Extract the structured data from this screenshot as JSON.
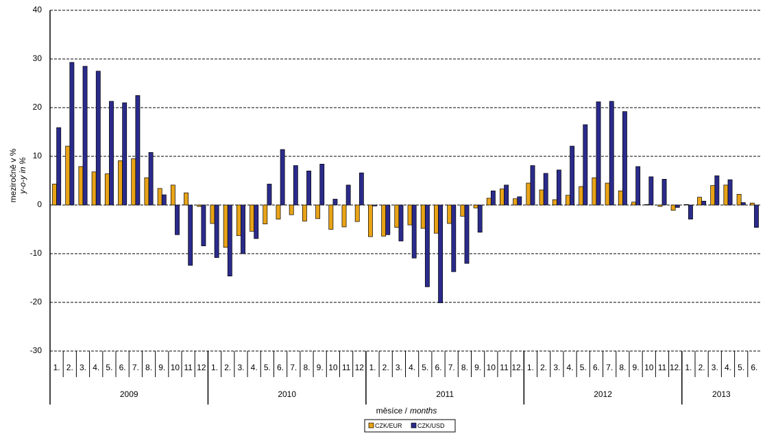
{
  "chart_data": {
    "type": "bar",
    "y_label": "meziročně v %",
    "y_label_en": "y-o-y in %",
    "x_label": "měsíce /",
    "x_label_en": "months",
    "ylim": [
      -30,
      40
    ],
    "yticks": [
      -30,
      -20,
      -10,
      0,
      10,
      20,
      30,
      40
    ],
    "grid": true,
    "categories": [
      "1.",
      "2.",
      "3.",
      "4.",
      "5.",
      "6.",
      "7.",
      "8.",
      "9.",
      "10",
      "11",
      "12",
      "1.",
      "2.",
      "3.",
      "4.",
      "5.",
      "6.",
      "7.",
      "8.",
      "9.",
      "10",
      "11",
      "12",
      "1.",
      "2.",
      "3.",
      "4.",
      "5.",
      "6.",
      "7.",
      "8.",
      "9.",
      "10",
      "11",
      "12.",
      "1.",
      "2.",
      "3.",
      "4.",
      "5.",
      "6.",
      "7.",
      "8.",
      "9.",
      "10",
      "11",
      "12.",
      "1.",
      "2.",
      "3.",
      "4.",
      "5.",
      "6."
    ],
    "groups": [
      {
        "label": "2009",
        "count": 12
      },
      {
        "label": "2010",
        "count": 12
      },
      {
        "label": "2011",
        "count": 12
      },
      {
        "label": "2012",
        "count": 12
      },
      {
        "label": "2013",
        "count": 6
      }
    ],
    "series": [
      {
        "name": "CZK/EUR",
        "color": "#e8a317",
        "values": [
          4.3,
          12.1,
          7.9,
          6.8,
          6.4,
          9.1,
          9.5,
          5.6,
          3.4,
          4.1,
          2.5,
          -0.3,
          -3.8,
          -8.7,
          -6.3,
          -5.4,
          -3.9,
          -2.9,
          -2.0,
          -3.3,
          -2.8,
          -5.0,
          -4.5,
          -3.4,
          -6.5,
          -6.4,
          -4.6,
          -4.1,
          -4.8,
          -5.8,
          -3.8,
          -2.3,
          -0.6,
          1.4,
          3.3,
          1.3,
          4.5,
          3.1,
          1.1,
          2.0,
          3.8,
          5.6,
          4.5,
          2.9,
          0.6,
          0.1,
          -0.3,
          -1.1,
          0.1,
          1.6,
          4.0,
          4.1,
          2.2,
          0.4
        ]
      },
      {
        "name": "CZK/USD",
        "color": "#2b2b8c",
        "values": [
          15.9,
          29.3,
          28.5,
          27.5,
          21.3,
          21.0,
          22.5,
          10.8,
          2.1,
          -6.1,
          -12.4,
          -8.4,
          -10.8,
          -14.6,
          -10.0,
          -6.9,
          4.3,
          11.4,
          8.1,
          7.0,
          8.4,
          1.2,
          4.1,
          6.6,
          -0.2,
          -6.1,
          -7.4,
          -10.9,
          -16.8,
          -20.1,
          -13.7,
          -12.0,
          -5.6,
          2.9,
          4.1,
          1.7,
          8.1,
          6.5,
          7.2,
          12.1,
          16.5,
          21.2,
          21.3,
          19.2,
          7.9,
          5.8,
          5.3,
          -0.5,
          -2.9,
          0.8,
          6.0,
          5.2,
          0.5,
          -4.6
        ]
      }
    ]
  }
}
